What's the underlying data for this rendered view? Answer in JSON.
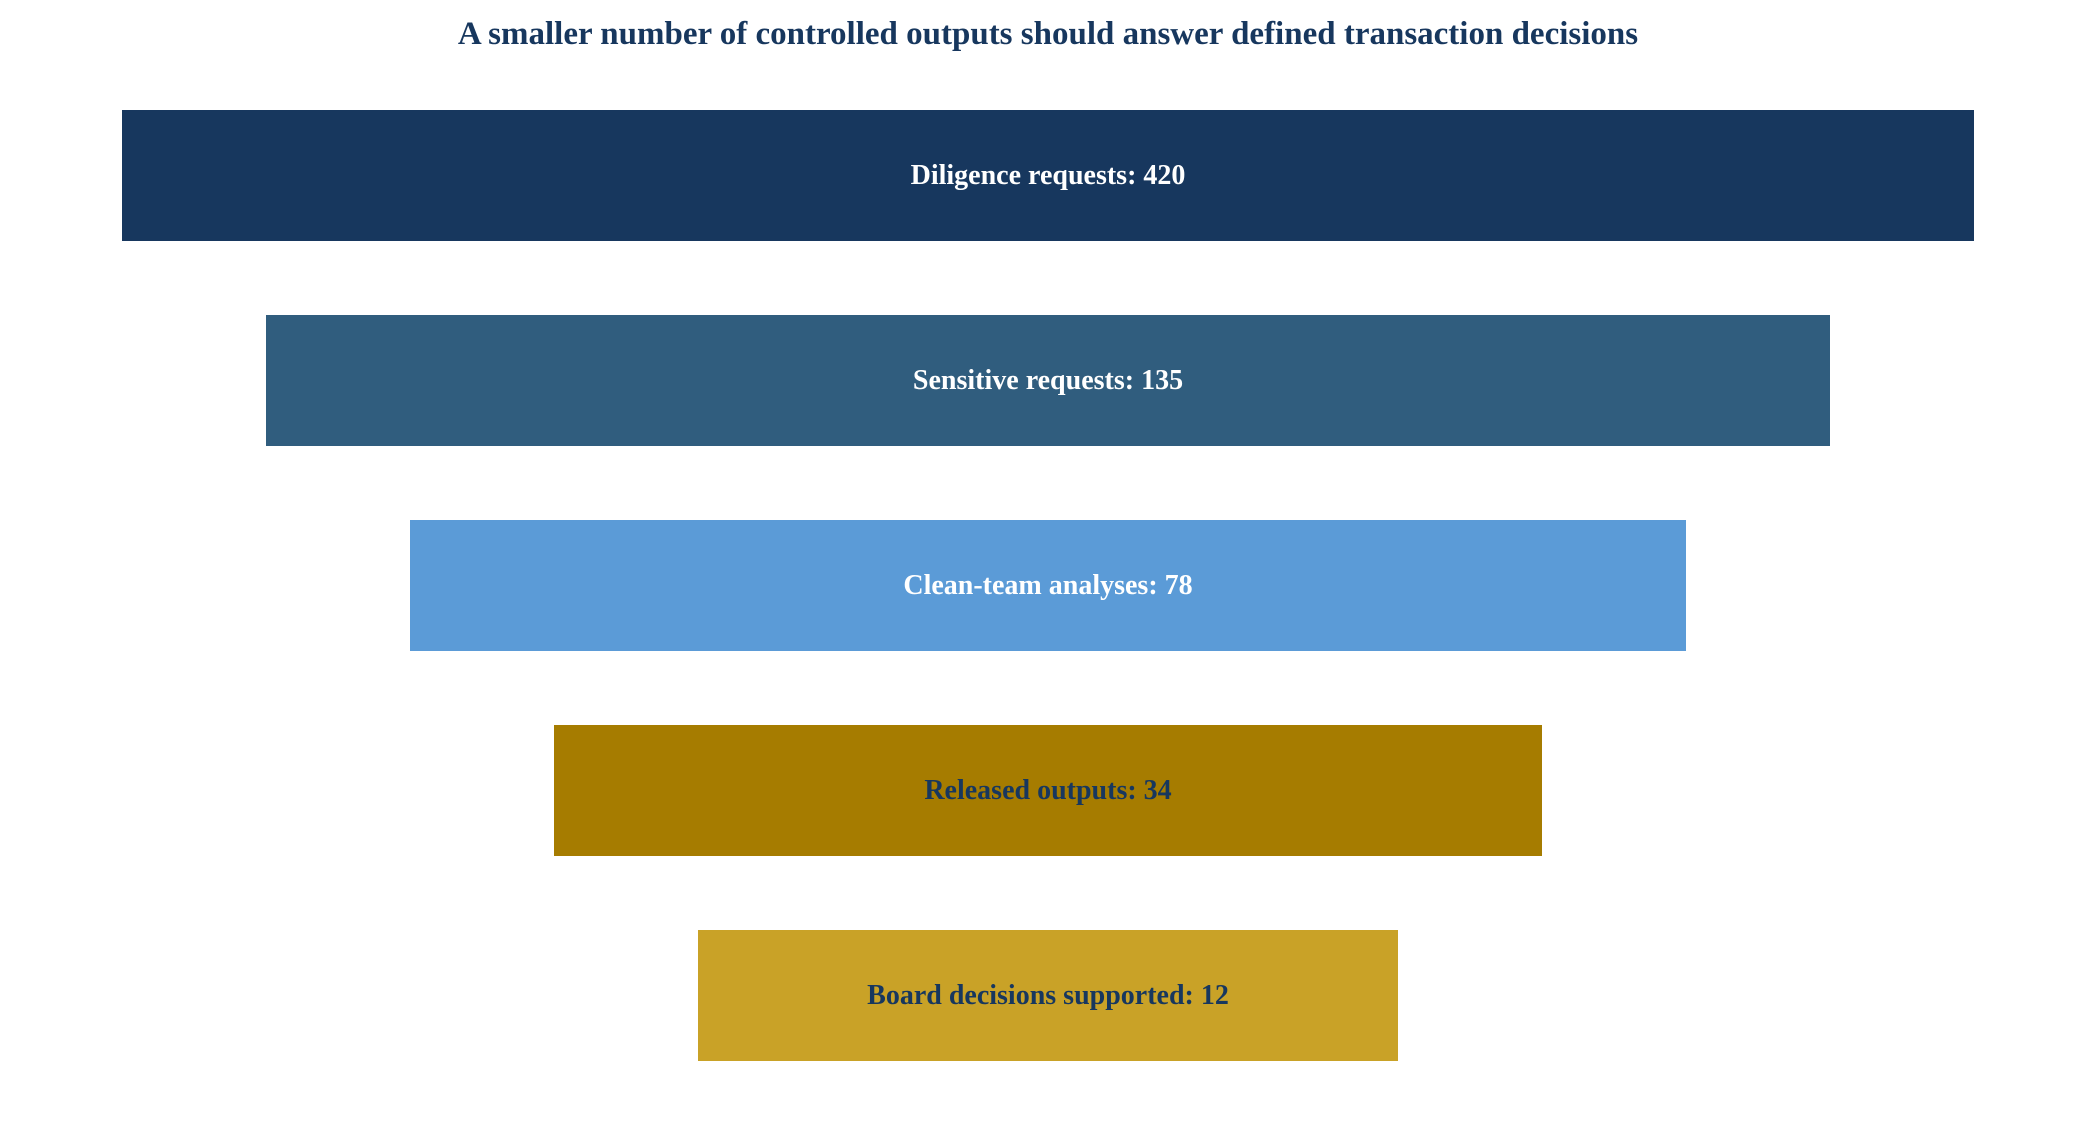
{
  "chart_data": {
    "type": "funnel",
    "title": "A smaller number of controlled outputs should answer defined transaction decisions",
    "stages": [
      {
        "label": "Diligence requests: 420",
        "name": "Diligence requests",
        "value": 420,
        "color": "#17375e",
        "text_color": "#ffffff"
      },
      {
        "label": "Sensitive requests: 135",
        "name": "Sensitive requests",
        "value": 135,
        "color": "#305d7e",
        "text_color": "#ffffff"
      },
      {
        "label": "Clean-team analyses: 78",
        "name": "Clean-team analyses",
        "value": 78,
        "color": "#5b9bd7",
        "text_color": "#ffffff"
      },
      {
        "label": "Released outputs: 34",
        "name": "Released outputs",
        "value": 34,
        "color": "#a67c00",
        "text_color": "#17375e"
      },
      {
        "label": "Board decisions supported: 12",
        "name": "Board decisions supported",
        "value": 12,
        "color": "#c9a227",
        "text_color": "#17375e"
      }
    ],
    "legend": "none",
    "grid": false
  }
}
